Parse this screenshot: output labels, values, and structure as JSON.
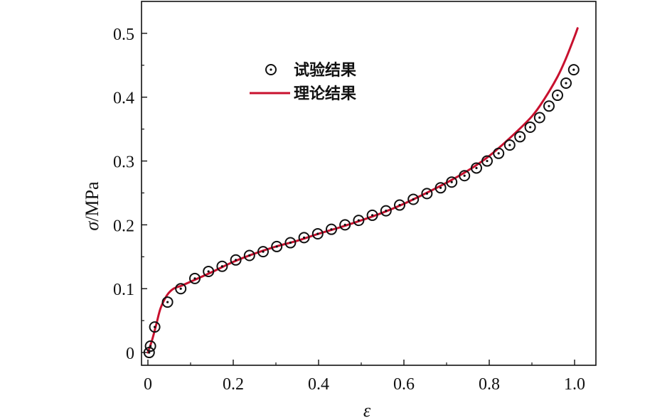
{
  "chart_data": {
    "type": "scatter",
    "xlabel": "ε",
    "ylabel_symbol": "σ",
    "ylabel_unit": "/MPa",
    "xlim": [
      -0.015,
      1.05
    ],
    "ylim": [
      -0.02,
      0.55
    ],
    "xticks": [
      0,
      0.2,
      0.4,
      0.6,
      0.8,
      1.0
    ],
    "xtick_labels": [
      "0",
      "0.2",
      "0.4",
      "0.6",
      "0.8",
      "1.0"
    ],
    "yticks": [
      0,
      0.1,
      0.2,
      0.3,
      0.4,
      0.5
    ],
    "ytick_labels": [
      "0",
      "0.1",
      "0.2",
      "0.3",
      "0.4",
      "0.5"
    ],
    "grid": false,
    "legend_position": "top-left",
    "series": [
      {
        "name": "试验结果",
        "kind": "scatter",
        "marker": "open-circle",
        "color": "#111111",
        "x": [
          0.003,
          0.006,
          0.016,
          0.046,
          0.077,
          0.11,
          0.142,
          0.174,
          0.206,
          0.238,
          0.27,
          0.302,
          0.334,
          0.366,
          0.398,
          0.43,
          0.462,
          0.494,
          0.526,
          0.558,
          0.59,
          0.622,
          0.654,
          0.686,
          0.712,
          0.742,
          0.77,
          0.795,
          0.822,
          0.848,
          0.872,
          0.896,
          0.918,
          0.94,
          0.96,
          0.98,
          0.998
        ],
        "y": [
          0.0,
          0.01,
          0.04,
          0.079,
          0.1,
          0.116,
          0.127,
          0.135,
          0.145,
          0.152,
          0.158,
          0.166,
          0.172,
          0.18,
          0.186,
          0.193,
          0.2,
          0.207,
          0.215,
          0.222,
          0.231,
          0.24,
          0.249,
          0.258,
          0.267,
          0.277,
          0.289,
          0.3,
          0.312,
          0.325,
          0.338,
          0.353,
          0.368,
          0.386,
          0.403,
          0.422,
          0.443
        ]
      },
      {
        "name": "理论结果",
        "kind": "line",
        "color": "#c8102e",
        "x": [
          0.0,
          0.01,
          0.02,
          0.03,
          0.045,
          0.06,
          0.08,
          0.1,
          0.15,
          0.2,
          0.25,
          0.3,
          0.35,
          0.4,
          0.45,
          0.5,
          0.55,
          0.6,
          0.65,
          0.7,
          0.75,
          0.8,
          0.85,
          0.9,
          0.93,
          0.96,
          0.98,
          1.0,
          1.007
        ],
        "y": [
          0.0,
          0.02,
          0.045,
          0.07,
          0.09,
          0.1,
          0.105,
          0.111,
          0.126,
          0.142,
          0.155,
          0.166,
          0.175,
          0.186,
          0.196,
          0.207,
          0.219,
          0.233,
          0.249,
          0.266,
          0.285,
          0.308,
          0.337,
          0.37,
          0.398,
          0.432,
          0.461,
          0.495,
          0.508
        ]
      }
    ]
  }
}
